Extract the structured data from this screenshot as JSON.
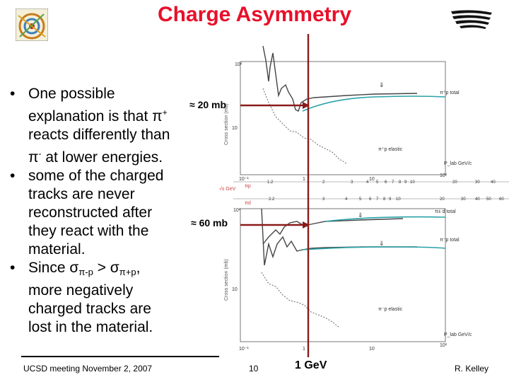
{
  "slide": {
    "title": "Charge Asymmetry",
    "bullets": [
      {
        "id": "b1",
        "text": "One possible explanation is that π⁺ reacts differently than π⁻ at lower energies."
      },
      {
        "id": "b2",
        "text": "some of the charged tracks are never reconstructed after they react with the material."
      },
      {
        "id": "b3",
        "text": "Since σπ-p > σπ+p, more negatively charged tracks are lost in the material."
      }
    ],
    "bullet_parts": {
      "b1_l1": "One possible",
      "b1_l2": "explanation is that π",
      "b1_l2_sup": "+",
      "b1_l3": "reacts differently than",
      "b1_l4a": "π",
      "b1_l4_sup": "-",
      "b1_l4b": " at lower energies.",
      "b2_l1": "some of the charged",
      "b2_l2": "tracks are never",
      "b2_l3": "reconstructed after",
      "b2_l4": "they react with the",
      "b2_l5": "material.",
      "b3_l1a": "Since σ",
      "b3_l1_sub1": "π-p",
      "b3_l1b": " > σ",
      "b3_l1_sub2": "π+p",
      "b3_l1c": ",",
      "b3_l2": "more negatively",
      "b3_l3": "charged tracks are",
      "b3_l4": "lost in the material."
    },
    "bullet_glyph": "•",
    "annotations": {
      "upper": "≈ 20 mb",
      "lower": "≈ 60 mb",
      "energy": "1 GeV"
    },
    "footer": {
      "left": "UCSD meeting November 2, 2007",
      "center": "10",
      "right": "R. Kelley"
    }
  },
  "plot": {
    "upper_ylabel": "Cross section (mb)",
    "lower_ylabel": "Cross section (mb)",
    "upper_yticks": [
      "10²",
      "10"
    ],
    "lower_yticks": [
      "10²",
      "10"
    ],
    "upper_xticks": [
      "10⁻¹",
      "1",
      "10",
      "10²"
    ],
    "lower_xticks": [
      "10⁻¹",
      "1",
      "10",
      "10²"
    ],
    "upper_labels": {
      "total": "π⁺p total",
      "elastic": "π⁺p elastic",
      "plab": "P_lab GeV/c"
    },
    "lower_labels": {
      "total_d": "π± d total",
      "total": "π⁻p total",
      "elastic": "π⁻p elastic",
      "plab": "P_lab GeV/c"
    },
    "sqrt_s_axis": {
      "label_pp": "√s GeV",
      "label_pip": "πp",
      "label_pid": "πd",
      "pip_ticks": [
        "1.2",
        "2",
        "3",
        "4",
        "5",
        "6",
        "7",
        "8",
        "9",
        "10",
        "20",
        "30",
        "40"
      ],
      "pid_ticks": [
        "2.2",
        "3",
        "4",
        "5",
        "6",
        "7",
        "8",
        "9",
        "10",
        "20",
        "30",
        "40",
        "50",
        "60"
      ]
    },
    "colors": {
      "curve": "#2aa2a8",
      "marker_line": "#8b1a1a",
      "arrow": "#8b1a1a",
      "data": "#444444"
    }
  }
}
